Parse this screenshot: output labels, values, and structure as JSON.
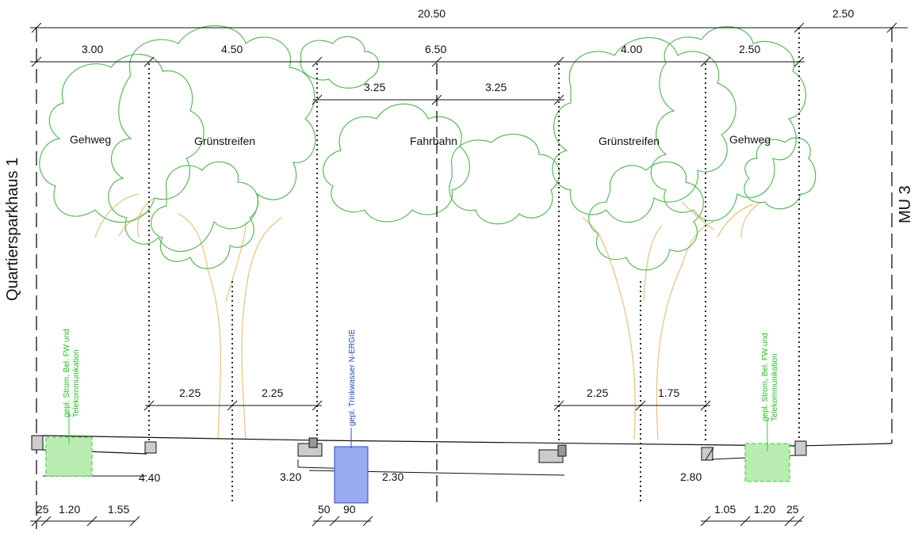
{
  "side_labels": {
    "left": "Quartiersparkhaus 1",
    "right": "MU 3"
  },
  "zones": {
    "gehweg_left": "Gehweg",
    "gruen_left": "Grünstreifen",
    "fahrbahn": "Fahrbahn",
    "gruen_right": "Grünstreifen",
    "gehweg_right": "Gehweg"
  },
  "dimensions": {
    "total": "20.50",
    "right_extra": "2.50",
    "segments": [
      "3.00",
      "4.50",
      "6.50",
      "4.00",
      "2.50"
    ],
    "lanes": [
      "3.25",
      "3.25"
    ],
    "tree_left": [
      "2.25",
      "2.25"
    ],
    "tree_right": [
      "2.25",
      "1.75"
    ],
    "depths": {
      "left": "4.40",
      "mid_a": "3.20",
      "mid_b": "2.30",
      "right": "2.80"
    },
    "bottom_left": [
      "25",
      "1.20",
      "1.55"
    ],
    "bottom_mid": [
      "50",
      "90"
    ],
    "bottom_right": [
      "1.05",
      "1.20",
      "25"
    ]
  },
  "utilities": {
    "left": [
      "gepl. Strom, Bel. FW und",
      "Telekommunikation"
    ],
    "right": [
      "gepl. Strom, Bel. FW und",
      "Telekommunikation"
    ],
    "water": "gepl. Trinkwasser N-ERGIE"
  },
  "colors": {
    "tree_crown": "#5cb85c",
    "tree_trunk": "#e6c27a",
    "utility_green_fill": "#b9ecb0",
    "utility_green_stroke": "#33cc33",
    "water_fill": "#99aaf0",
    "water_stroke": "#3344cc"
  }
}
